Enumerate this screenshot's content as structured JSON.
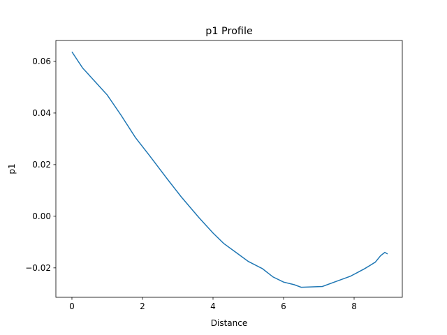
{
  "chart_data": {
    "type": "line",
    "title": "p1 Profile",
    "x_label": "Distance",
    "y_label": "p1",
    "x": [
      0,
      0.3,
      0.6,
      1.0,
      1.4,
      1.8,
      2.2,
      2.7,
      3.1,
      3.6,
      4.0,
      4.3,
      4.7,
      5.0,
      5.4,
      5.7,
      6.0,
      6.3,
      6.5,
      7.1,
      7.5,
      7.9,
      8.3,
      8.6,
      8.75,
      8.87,
      8.95
    ],
    "series": [
      {
        "name": "p1",
        "color": "#1f77b4",
        "values": [
          0.0637,
          0.0575,
          0.053,
          0.047,
          0.039,
          0.0305,
          0.0235,
          0.0145,
          0.0075,
          -0.0005,
          -0.0065,
          -0.0105,
          -0.0145,
          -0.0175,
          -0.0203,
          -0.0235,
          -0.0255,
          -0.0265,
          -0.0275,
          -0.0272,
          -0.0252,
          -0.0232,
          -0.0203,
          -0.0178,
          -0.0153,
          -0.014,
          -0.0146
        ]
      }
    ],
    "xlim": [
      -0.455,
      9.366
    ],
    "ylim": [
      -0.0314,
      0.0681
    ],
    "xticks": [
      0,
      2,
      4,
      6,
      8
    ],
    "yticks": [
      {
        "value": -0.02,
        "label": "−0.02"
      },
      {
        "value": 0,
        "label": "0.00"
      },
      0.02,
      0.04,
      0.06
    ]
  }
}
